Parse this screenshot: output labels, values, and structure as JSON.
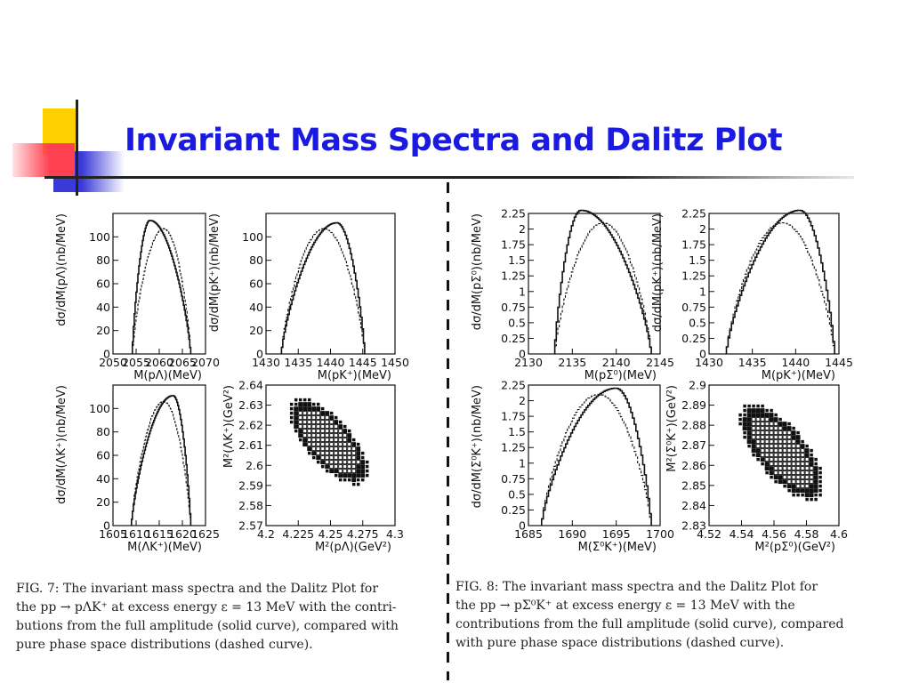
{
  "slide": {
    "title": "Invariant Mass Spectra and Dalitz Plot"
  },
  "captions": {
    "fig7": [
      "FIG. 7: The invariant mass spectra and the Dalitz Plot for",
      "the pp → pΛK⁺ at excess energy ε = 13 MeV with the contri-",
      "butions from the full amplitude (solid curve), compared with",
      "pure phase space distributions (dashed curve)."
    ],
    "fig8": [
      "FIG. 8: The invariant mass spectra and the Dalitz Plot for",
      "the pp → pΣ⁰K⁺ at excess energy ε = 13 MeV with the",
      "contributions from the full amplitude (solid curve), compared",
      "with pure phase space distributions (dashed curve)."
    ]
  },
  "colors": {
    "title": "#1a1ae0",
    "deco_yellow": "#ffd000",
    "deco_red": "#ff4050",
    "deco_blue": "#3a3ad8"
  },
  "chart_data": [
    {
      "type": "line",
      "figure": "FIG. 7",
      "panel": "pΛ",
      "xlabel": "M(pΛ)(MeV)",
      "ylabel": "dσ/dM(pΛ)(nb/MeV)",
      "xlim": [
        2050,
        2070
      ],
      "ylim": [
        0,
        120
      ],
      "xticks": [
        2050,
        2055,
        2060,
        2065,
        2070
      ],
      "yticks": [
        0,
        20,
        40,
        60,
        80,
        100
      ],
      "range": [
        2054.2,
        2066.8
      ],
      "series": [
        {
          "style": "solid",
          "peak_x": 2058.0,
          "peak_y": 114
        },
        {
          "style": "dashed",
          "peak_x": 2061.0,
          "peak_y": 107
        }
      ]
    },
    {
      "type": "line",
      "figure": "FIG. 7",
      "panel": "pK⁺",
      "xlabel": "M(pK⁺)(MeV)",
      "ylabel": "dσ/dM(pK⁺)(nb/MeV)",
      "xlim": [
        1430,
        1450
      ],
      "ylim": [
        0,
        120
      ],
      "xticks": [
        1430,
        1435,
        1440,
        1445,
        1450
      ],
      "yticks": [
        0,
        20,
        40,
        60,
        80,
        100
      ],
      "range": [
        1432.4,
        1445.3
      ],
      "series": [
        {
          "style": "solid",
          "peak_x": 1441.0,
          "peak_y": 112
        },
        {
          "style": "dashed",
          "peak_x": 1439.0,
          "peak_y": 107
        }
      ]
    },
    {
      "type": "line",
      "figure": "FIG. 7",
      "panel": "ΛK⁺",
      "xlabel": "M(ΛK⁺)(MeV)",
      "ylabel": "dσ/dM(ΛK⁺)(nb/MeV)",
      "xlim": [
        1605,
        1625
      ],
      "ylim": [
        0,
        120
      ],
      "xticks": [
        1605,
        1610,
        1615,
        1620,
        1625
      ],
      "yticks": [
        0,
        20,
        40,
        60,
        80,
        100
      ],
      "range": [
        1609.0,
        1621.8
      ],
      "series": [
        {
          "style": "solid",
          "peak_x": 1618.0,
          "peak_y": 111
        },
        {
          "style": "dashed",
          "peak_x": 1616.0,
          "peak_y": 106
        }
      ]
    },
    {
      "type": "scatter",
      "figure": "FIG. 7",
      "panel": "Dalitz",
      "xlabel": "M²(pΛ)(GeV²)",
      "ylabel": "M²(ΛK⁺)(GeV²)",
      "xlim": [
        4.2,
        4.3
      ],
      "ylim": [
        2.57,
        2.64
      ],
      "xticks": [
        4.2,
        4.225,
        4.25,
        4.275,
        4.3
      ],
      "yticks": [
        2.57,
        2.58,
        2.59,
        2.6,
        2.61,
        2.62,
        2.63,
        2.64
      ],
      "region": {
        "top_left": [
          4.222,
          2.631
        ],
        "bottom_right": [
          4.275,
          2.593
        ]
      }
    },
    {
      "type": "line",
      "figure": "FIG. 8",
      "panel": "pΣ⁰",
      "xlabel": "M(pΣ⁰)(MeV)",
      "ylabel": "dσ/dM(pΣ⁰)(nb/MeV)",
      "xlim": [
        2130,
        2145
      ],
      "ylim": [
        0,
        2.25
      ],
      "xticks": [
        2130,
        2135,
        2140,
        2145
      ],
      "yticks": [
        0,
        0.25,
        0.5,
        0.75,
        1,
        1.25,
        1.5,
        1.75,
        2,
        2.25
      ],
      "range": [
        2133.0,
        2144.0
      ],
      "series": [
        {
          "style": "solid",
          "peak_x": 2136.0,
          "peak_y": 2.3
        },
        {
          "style": "dashed",
          "peak_x": 2138.5,
          "peak_y": 2.1
        }
      ]
    },
    {
      "type": "line",
      "figure": "FIG. 8",
      "panel": "pK⁺",
      "xlabel": "M(pK⁺)(MeV)",
      "ylabel": "dσ/dM(pK⁺)(nb/MeV)",
      "xlim": [
        1430,
        1445
      ],
      "ylim": [
        0,
        2.25
      ],
      "xticks": [
        1430,
        1435,
        1440,
        1445
      ],
      "yticks": [
        0,
        0.25,
        0.5,
        0.75,
        1,
        1.25,
        1.5,
        1.75,
        2,
        2.25
      ],
      "range": [
        1432.0,
        1444.5
      ],
      "series": [
        {
          "style": "solid",
          "peak_x": 1440.5,
          "peak_y": 2.3
        },
        {
          "style": "dashed",
          "peak_x": 1438.5,
          "peak_y": 2.1
        }
      ]
    },
    {
      "type": "line",
      "figure": "FIG. 8",
      "panel": "Σ⁰K⁺",
      "xlabel": "M(Σ⁰K⁺)(MeV)",
      "ylabel": "dσ/dM(Σ⁰K⁺)(nb/MeV)",
      "xlim": [
        1685,
        1700
      ],
      "ylim": [
        0,
        2.25
      ],
      "xticks": [
        1685,
        1690,
        1695,
        1700
      ],
      "yticks": [
        0,
        0.25,
        0.5,
        0.75,
        1,
        1.25,
        1.5,
        1.75,
        2,
        2.25
      ],
      "range": [
        1686.5,
        1699.0
      ],
      "series": [
        {
          "style": "solid",
          "peak_x": 1695.0,
          "peak_y": 2.2
        },
        {
          "style": "dashed",
          "peak_x": 1693.0,
          "peak_y": 2.1
        }
      ]
    },
    {
      "type": "scatter",
      "figure": "FIG. 8",
      "panel": "Dalitz",
      "xlabel": "M²(pΣ⁰)(GeV²)",
      "ylabel": "M²(Σ⁰K⁺)(GeV²)",
      "xlim": [
        4.52,
        4.6
      ],
      "ylim": [
        2.83,
        2.9
      ],
      "xticks": [
        4.52,
        4.54,
        4.56,
        4.58,
        4.6
      ],
      "yticks": [
        2.83,
        2.84,
        2.85,
        2.86,
        2.87,
        2.88,
        2.89,
        2.9
      ],
      "region": {
        "top_left": [
          4.543,
          2.888
        ],
        "bottom_right": [
          4.587,
          2.845
        ]
      }
    }
  ]
}
